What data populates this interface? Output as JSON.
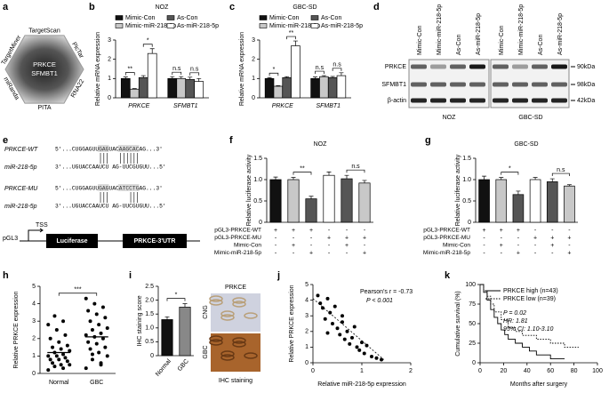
{
  "panel_a": {
    "label": "a",
    "center": [
      "PRKCE",
      "SFMBT1"
    ],
    "databases": [
      "TargetScan",
      "PicTar",
      "RNA22",
      "PITA",
      "miRanda",
      "TargetMiner"
    ]
  },
  "panel_d": {
    "label": "d",
    "lanes": [
      "Mimic-Con",
      "Mimic-miR-218-5p",
      "As-Con",
      "As-miR-218-5p",
      "Mimic-Con",
      "Mimic-miR-218-5p",
      "As-Con",
      "As-miR-218-5p"
    ],
    "rows": [
      "PRKCE",
      "SFMBT1",
      "β-actin"
    ],
    "sizes": [
      "90kDa",
      "98kDa",
      "42kDa"
    ],
    "groups": [
      "NOZ",
      "GBC-SD"
    ]
  },
  "panel_e": {
    "label": "e",
    "rows": [
      {
        "name": "PRKCE-WT",
        "sequence": "5'...CUGGAGUUGAGUACAAGCACAG...3'"
      },
      {
        "name": "miR-218-5p",
        "sequence": "3'...UGUACCAAUCU AG-UUCGUGUU...5'"
      },
      {
        "name": "PRKCE-MU",
        "sequence": "5'...CUGGAGUUGAGUACATCCTGAG...3'"
      },
      {
        "name": "miR-218-5p",
        "sequence": "3'...UGUACCAAUCU AG-UUCGUGUU...5'"
      }
    ],
    "construct": {
      "vector": "pGL3",
      "promoter": "TSS",
      "gene": "Luciferase",
      "utr": "PRKCE-3'UTR"
    }
  },
  "panel_i_image": {
    "title": "PRKCE",
    "rows": [
      "CNG",
      "GBC"
    ],
    "caption": "IHC staining"
  },
  "chart_data": [
    {
      "panel": "b",
      "type": "bar",
      "title": "NOZ",
      "ylabel": "Relative mRNA expression",
      "categories": [
        "PRKCE",
        "SFMBT1"
      ],
      "series": [
        {
          "name": "Mimic-Con",
          "color": "#111111",
          "values": [
            1,
            1
          ],
          "errors": [
            0.08,
            0.1
          ]
        },
        {
          "name": "Mimic-miR-218-5p",
          "color": "#c8c8c8",
          "values": [
            0.45,
            1
          ],
          "errors": [
            0.03,
            0.1
          ]
        },
        {
          "name": "As-Con",
          "color": "#555555",
          "values": [
            1.05,
            0.95
          ],
          "errors": [
            0.1,
            0.12
          ]
        },
        {
          "name": "As-miR-218-5p",
          "color": "#ffffff",
          "values": [
            2.3,
            0.85
          ],
          "errors": [
            0.25,
            0.15
          ]
        }
      ],
      "ylim": [
        0,
        3
      ],
      "yticks": [
        0,
        1,
        2,
        3
      ],
      "annotations": [
        "**",
        "*",
        "n.s",
        "n.s"
      ]
    },
    {
      "panel": "c",
      "type": "bar",
      "title": "GBC-SD",
      "ylabel": "Relative mRNA expression",
      "categories": [
        "PRKCE",
        "SFMBT1"
      ],
      "series": [
        {
          "name": "Mimic-Con",
          "color": "#111111",
          "values": [
            1,
            1
          ],
          "errors": [
            0.05,
            0.08
          ]
        },
        {
          "name": "Mimic-miR-218-5p",
          "color": "#c8c8c8",
          "values": [
            0.6,
            1.1
          ],
          "errors": [
            0.03,
            0.05
          ]
        },
        {
          "name": "As-Con",
          "color": "#555555",
          "values": [
            1.05,
            1.05
          ],
          "errors": [
            0.05,
            0.06
          ]
        },
        {
          "name": "As-miR-218-5p",
          "color": "#ffffff",
          "values": [
            2.7,
            1.15
          ],
          "errors": [
            0.25,
            0.15
          ]
        }
      ],
      "ylim": [
        0,
        3
      ],
      "yticks": [
        0,
        1,
        2,
        3
      ],
      "annotations": [
        "*",
        "**",
        "n.s",
        "n.s"
      ]
    },
    {
      "panel": "f",
      "type": "bar",
      "title": "NOZ",
      "ylabel": "Relative luciferase activity",
      "values": [
        1,
        1,
        0.55,
        1.1,
        1.02,
        0.92
      ],
      "errors": [
        0.06,
        0.05,
        0.06,
        0.08,
        0.08,
        0.06
      ],
      "colors": [
        "#111111",
        "#c8c8c8",
        "#555555",
        "#ffffff",
        "#555555",
        "#c8c8c8"
      ],
      "ylim": [
        0,
        1.5
      ],
      "yticks": [
        0,
        0.5,
        {
          "value": 1,
          "label": "1.0"
        },
        1.5
      ],
      "annotations": [
        "**",
        "n.s"
      ],
      "table": [
        {
          "label": "pGL3-PRKCE-WT",
          "cells": [
            "+",
            "+",
            "+",
            "-",
            "-",
            "-"
          ]
        },
        {
          "label": "pGL3-PRKCE-MU",
          "cells": [
            "-",
            "-",
            "-",
            "+",
            "+",
            "+"
          ]
        },
        {
          "label": "Mimic-Con",
          "cells": [
            "-",
            "+",
            "-",
            "-",
            "+",
            "-"
          ]
        },
        {
          "label": "Mimic-miR-218-5p",
          "cells": [
            "-",
            "-",
            "+",
            "-",
            "-",
            "+"
          ]
        }
      ]
    },
    {
      "panel": "g",
      "type": "bar",
      "title": "GBC-SD",
      "ylabel": "Relative luciferase activity",
      "values": [
        1,
        1,
        0.65,
        1,
        0.95,
        0.85
      ],
      "errors": [
        0.08,
        0.05,
        0.08,
        0.05,
        0.07,
        0.03
      ],
      "colors": [
        "#111111",
        "#c8c8c8",
        "#555555",
        "#ffffff",
        "#555555",
        "#c8c8c8"
      ],
      "ylim": [
        0,
        1.5
      ],
      "yticks": [
        0,
        0.5,
        {
          "value": 1,
          "label": "1.0"
        },
        1.5
      ],
      "annotations": [
        "*",
        "n.s"
      ],
      "table": [
        {
          "label": "pGL3-PRKCE-WT",
          "cells": [
            "+",
            "+",
            "+",
            "-",
            "-",
            "-"
          ]
        },
        {
          "label": "pGL3-PRKCE-MU",
          "cells": [
            "-",
            "-",
            "-",
            "+",
            "+",
            "+"
          ]
        },
        {
          "label": "Mimic-Con",
          "cells": [
            "-",
            "+",
            "-",
            "-",
            "+",
            "-"
          ]
        },
        {
          "label": "Mimic-miR-218-5p",
          "cells": [
            "-",
            "-",
            "+",
            "-",
            "-",
            "+"
          ]
        }
      ]
    },
    {
      "panel": "h",
      "type": "dotplot",
      "ylabel": "Relative PRKCE expression",
      "categories": [
        "Normal",
        "GBC"
      ],
      "values": [
        [
          0.2,
          0.3,
          0.4,
          0.5,
          0.5,
          0.6,
          0.7,
          0.8,
          0.8,
          0.9,
          1,
          1,
          1.1,
          1.2,
          1.3,
          1.4,
          1.5,
          1.6,
          1.8,
          2,
          2.2,
          2.5,
          2.8,
          3,
          3.3
        ],
        [
          0.3,
          0.5,
          0.8,
          1,
          1.2,
          1.4,
          1.5,
          1.7,
          1.8,
          2,
          2.1,
          2.2,
          2.3,
          2.5,
          2.6,
          2.8,
          3,
          3.2,
          3.4,
          3.6,
          3.8,
          4,
          4.3,
          0.6,
          1.1
        ]
      ],
      "means": [
        1.2,
        2.1
      ],
      "ylim": [
        0,
        5
      ],
      "yticks": [
        0,
        1,
        2,
        3,
        4,
        5
      ],
      "annotations": [
        "***"
      ]
    },
    {
      "panel": "i",
      "type": "bar",
      "ylabel": "IHC staining score",
      "categories": [
        "Normal",
        "GBC"
      ],
      "values": [
        1.3,
        1.75
      ],
      "errors": [
        0.1,
        0.12
      ],
      "colors": [
        "#111111",
        "#888888"
      ],
      "ylim": [
        0,
        2.5
      ],
      "yticks": [
        0,
        0.5,
        {
          "value": 1,
          "label": "1.0"
        },
        1.5,
        {
          "value": 2,
          "label": "2.0"
        },
        2.5
      ],
      "annotations": [
        "*"
      ]
    },
    {
      "panel": "j",
      "type": "scatter",
      "xlabel": "Relative miR-218-5p expression",
      "ylabel": "Relative PRKCE expression",
      "x": [
        0.1,
        0.15,
        0.2,
        0.25,
        0.3,
        0.35,
        0.4,
        0.45,
        0.5,
        0.55,
        0.6,
        0.65,
        0.7,
        0.75,
        0.8,
        0.85,
        0.9,
        0.95,
        1,
        1.05,
        1.1,
        1.2,
        1.3,
        1.4,
        0.3,
        0.6
      ],
      "y": [
        4.3,
        3.8,
        3.5,
        2.8,
        4.1,
        3.2,
        2.5,
        3.6,
        2.2,
        1.8,
        2.6,
        1.5,
        2,
        1.2,
        1.6,
        2.3,
        1,
        0.8,
        1.3,
        0.6,
        1.1,
        0.4,
        0.3,
        0.2,
        1.9,
        3
      ],
      "xlim": [
        0,
        2
      ],
      "xticks": [
        0,
        1,
        2
      ],
      "ylim": [
        0,
        5
      ],
      "yticks": [
        0,
        1,
        2,
        3,
        4,
        5
      ],
      "trendline": {
        "x": [
          0,
          1.45
        ],
        "y": [
          4.1,
          0.2
        ]
      },
      "annotations": [
        "Pearson's r = -0.73",
        "P < 0.001"
      ]
    },
    {
      "panel": "k",
      "type": "line",
      "step": true,
      "xlabel": "Months after surgery",
      "ylabel": "Cumulative survival (%)",
      "series": [
        {
          "name": "PRKCE high (n=43)",
          "color": "#000000",
          "style": "solid",
          "x": [
            0,
            3,
            6,
            9,
            12,
            15,
            18,
            21,
            24,
            30,
            36,
            42,
            48,
            60,
            72
          ],
          "values": [
            100,
            90,
            80,
            68,
            58,
            50,
            42,
            36,
            30,
            25,
            20,
            15,
            10,
            5,
            5
          ]
        },
        {
          "name": "PRKCE low (n=39)",
          "color": "#000000",
          "style": "dotted",
          "x": [
            0,
            3,
            6,
            9,
            12,
            18,
            24,
            30,
            36,
            48,
            60,
            72,
            84
          ],
          "values": [
            100,
            92,
            85,
            75,
            65,
            55,
            45,
            40,
            35,
            30,
            25,
            20,
            20
          ]
        }
      ],
      "xlim": [
        0,
        100
      ],
      "xticks": [
        0,
        20,
        40,
        60,
        80,
        100
      ],
      "ylim": [
        0,
        100
      ],
      "yticks": [
        0,
        25,
        50,
        75,
        100
      ],
      "annotations": [
        "P = 0.02",
        "HR: 1.81",
        "95% CI: 1.10-3.10"
      ]
    }
  ]
}
